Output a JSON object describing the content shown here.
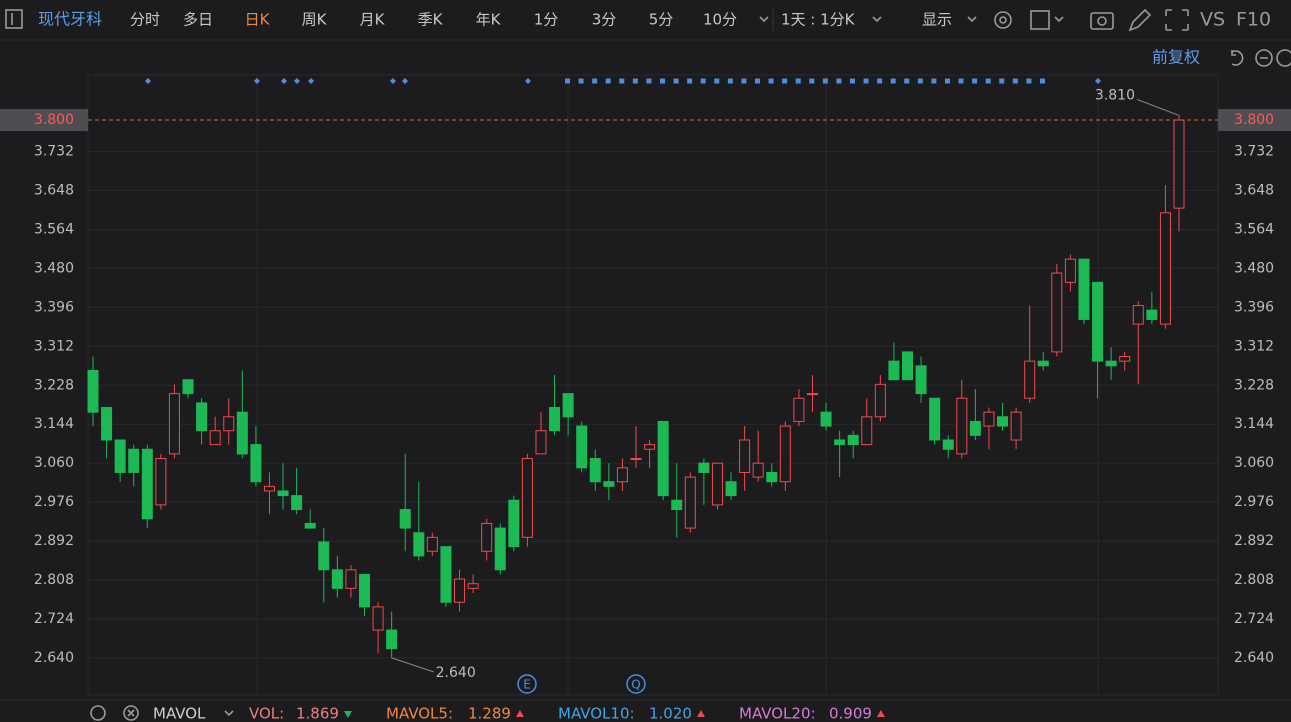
{
  "toolbar": {
    "stock_name": "现代牙科",
    "tabs": [
      {
        "label": "分时"
      },
      {
        "label": "多日"
      },
      {
        "label": "日K",
        "active": true
      },
      {
        "label": "周K"
      },
      {
        "label": "月K"
      },
      {
        "label": "季K"
      },
      {
        "label": "年K"
      },
      {
        "label": "1分"
      },
      {
        "label": "3分"
      },
      {
        "label": "5分"
      },
      {
        "label": "10分"
      }
    ],
    "range_select": "1天 : 1分K",
    "display": "显示",
    "vs": "VS",
    "f10": "F10",
    "adjust": "前复权"
  },
  "chart_data": {
    "type": "candlestick",
    "up_color": "#ee4b4b",
    "down_color": "#1db954",
    "open": [
      3.26,
      3.18,
      3.11,
      3.09,
      3.09,
      2.97,
      3.08,
      3.24,
      3.19,
      3.1,
      3.13,
      3.17,
      3.1,
      3.0,
      3.0,
      2.99,
      2.93,
      2.89,
      2.83,
      2.79,
      2.82,
      2.7,
      2.7,
      2.96,
      2.91,
      2.87,
      2.88,
      2.76,
      2.79,
      2.87,
      2.92,
      2.98,
      2.9,
      3.08,
      3.18,
      3.21,
      3.14,
      3.07,
      3.02,
      3.02,
      3.07,
      3.09,
      3.15,
      2.98,
      2.92,
      3.06,
      2.97,
      3.02,
      3.04,
      3.03,
      3.04,
      3.02,
      3.15,
      3.21,
      3.17,
      3.11,
      3.12,
      3.1,
      3.16,
      3.28,
      3.3,
      3.27,
      3.2,
      3.11,
      3.08,
      3.15,
      3.14,
      3.16,
      3.11,
      3.2,
      3.28,
      3.3,
      3.45,
      3.5,
      3.45,
      3.28,
      3.28,
      3.36,
      3.39,
      3.36,
      3.61
    ],
    "close": [
      3.17,
      3.11,
      3.04,
      3.04,
      2.94,
      3.07,
      3.21,
      3.21,
      3.13,
      3.13,
      3.16,
      3.08,
      3.02,
      3.01,
      2.99,
      2.96,
      2.92,
      2.83,
      2.79,
      2.83,
      2.75,
      2.75,
      2.66,
      2.92,
      2.86,
      2.9,
      2.76,
      2.81,
      2.8,
      2.93,
      2.83,
      2.88,
      3.07,
      3.13,
      3.13,
      3.16,
      3.05,
      3.02,
      3.01,
      3.05,
      3.07,
      3.1,
      2.99,
      2.96,
      3.03,
      3.04,
      3.06,
      2.99,
      3.11,
      3.06,
      3.02,
      3.14,
      3.2,
      3.21,
      3.14,
      3.1,
      3.1,
      3.16,
      3.23,
      3.24,
      3.24,
      3.21,
      3.11,
      3.09,
      3.2,
      3.12,
      3.17,
      3.14,
      3.17,
      3.28,
      3.27,
      3.47,
      3.5,
      3.37,
      3.28,
      3.27,
      3.29,
      3.4,
      3.37,
      3.6,
      3.8
    ],
    "high": [
      3.29,
      3.18,
      3.11,
      3.1,
      3.1,
      3.08,
      3.23,
      3.24,
      3.2,
      3.16,
      3.2,
      3.26,
      3.14,
      3.04,
      3.06,
      3.05,
      2.96,
      2.92,
      2.86,
      2.84,
      2.82,
      2.76,
      2.74,
      3.08,
      3.02,
      2.91,
      2.88,
      2.83,
      2.82,
      2.94,
      2.93,
      2.99,
      3.08,
      3.17,
      3.25,
      3.21,
      3.15,
      3.09,
      3.06,
      3.07,
      3.14,
      3.11,
      3.15,
      3.06,
      3.04,
      3.07,
      3.06,
      3.04,
      3.14,
      3.13,
      3.06,
      3.15,
      3.22,
      3.25,
      3.19,
      3.13,
      3.13,
      3.2,
      3.25,
      3.32,
      3.3,
      3.29,
      3.2,
      3.12,
      3.24,
      3.22,
      3.18,
      3.19,
      3.18,
      3.4,
      3.3,
      3.49,
      3.51,
      3.5,
      3.45,
      3.31,
      3.3,
      3.41,
      3.43,
      3.66,
      3.81
    ],
    "low": [
      3.14,
      3.07,
      3.02,
      3.01,
      2.92,
      2.96,
      3.07,
      3.2,
      3.1,
      3.1,
      3.1,
      3.07,
      3.01,
      2.95,
      2.96,
      2.95,
      2.92,
      2.76,
      2.77,
      2.77,
      2.73,
      2.65,
      2.64,
      2.87,
      2.85,
      2.86,
      2.75,
      2.74,
      2.78,
      2.85,
      2.82,
      2.87,
      2.88,
      3.08,
      3.12,
      3.12,
      3.04,
      3.0,
      2.98,
      3.0,
      3.05,
      3.05,
      2.98,
      2.9,
      2.91,
      2.97,
      2.96,
      2.98,
      3.0,
      3.02,
      3.01,
      3.0,
      3.14,
      3.17,
      3.13,
      3.03,
      3.07,
      3.1,
      3.15,
      3.24,
      3.24,
      3.19,
      3.1,
      3.07,
      3.07,
      3.11,
      3.09,
      3.13,
      3.09,
      3.19,
      3.26,
      3.29,
      3.43,
      3.36,
      3.2,
      3.24,
      3.26,
      3.23,
      3.36,
      3.35,
      3.56
    ],
    "ylim": [
      2.56,
      3.826
    ],
    "yticks": [
      {
        "value": 2.64,
        "label": "2.640"
      },
      2.724,
      2.808,
      2.892,
      2.976,
      {
        "value": 3.06,
        "label": "3.060"
      },
      3.144,
      3.228,
      3.312,
      3.396,
      {
        "value": 3.48,
        "label": "3.480"
      },
      3.564,
      3.648,
      3.732
    ],
    "grid": true,
    "last_price": {
      "value": 3.8,
      "label": "3.800"
    },
    "max_label": {
      "value": 3.81,
      "label": "3.810"
    },
    "min_label": {
      "value": 2.64,
      "label": "2.640"
    },
    "events": [
      "E",
      "Q"
    ]
  },
  "indicator_bar": {
    "name": "MAVOL",
    "items": [
      {
        "name": "VOL:",
        "value": "1.869",
        "color": "#f07f7f",
        "trend": "down"
      },
      {
        "name": "MAVOL5:",
        "value": "1.289",
        "color": "#f0883e",
        "trend": "up"
      },
      {
        "name": "MAVOL10:",
        "value": "1.020",
        "color": "#3ea6e6",
        "trend": "up"
      },
      {
        "name": "MAVOL20:",
        "value": "0.909",
        "color": "#d77ad7",
        "trend": "up"
      }
    ]
  }
}
